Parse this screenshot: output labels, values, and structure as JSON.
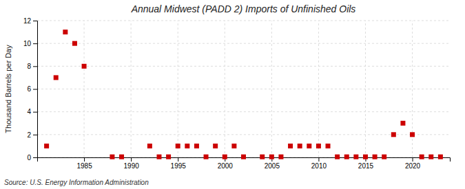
{
  "chart_data": {
    "type": "scatter",
    "title": "Annual Midwest (PADD 2) Imports of Unfinished Oils",
    "ylabel": "Thousand Barrels per Day",
    "annotations": [
      "Source: U.S. Energy Information Administration"
    ],
    "color": "#cc0000",
    "marker": "square",
    "grid": true,
    "xlim": [
      1980,
      2024
    ],
    "ylim": [
      0,
      12
    ],
    "xticks": [
      1985,
      1990,
      1995,
      2000,
      2005,
      2010,
      2015,
      2020
    ],
    "yticks": [
      0,
      2,
      4,
      6,
      8,
      10,
      12
    ],
    "x": [
      1981,
      1982,
      1983,
      1984,
      1985,
      1988,
      1989,
      1992,
      1993,
      1994,
      1995,
      1996,
      1997,
      1998,
      1999,
      2000,
      2001,
      2002,
      2004,
      2005,
      2006,
      2007,
      2008,
      2009,
      2010,
      2011,
      2012,
      2013,
      2014,
      2015,
      2016,
      2017,
      2018,
      2019,
      2020,
      2021,
      2022,
      2023
    ],
    "values": [
      1,
      7,
      11,
      10,
      8,
      0.05,
      0.05,
      1,
      0.05,
      0.05,
      1,
      1,
      1,
      0.05,
      1,
      0.05,
      1,
      0.05,
      0.05,
      0.05,
      0.05,
      1,
      1,
      1,
      1,
      1,
      0.05,
      0.05,
      0.05,
      0.05,
      0.05,
      0.05,
      2,
      3,
      2,
      0.05,
      0.05,
      0.05
    ]
  }
}
